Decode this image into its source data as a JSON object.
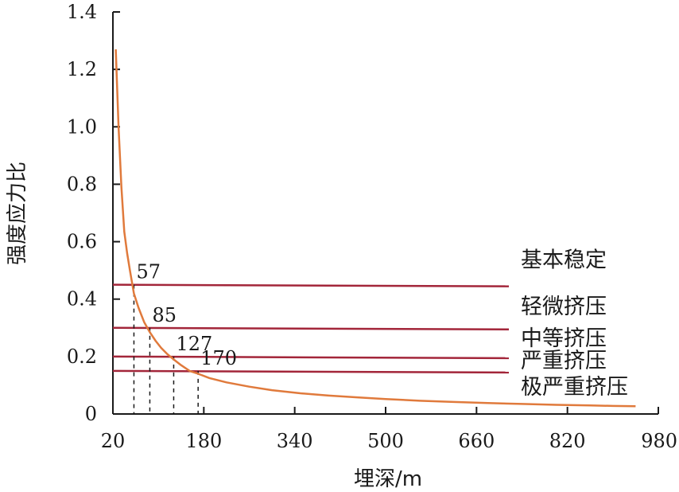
{
  "chart_data": {
    "type": "line",
    "xlabel": "埋深/m",
    "ylabel": "强度应力比",
    "xlim": [
      20,
      980
    ],
    "ylim": [
      0,
      1.4
    ],
    "x_ticks": [
      20,
      180,
      340,
      500,
      660,
      820,
      980
    ],
    "y_ticks": [
      0,
      0.2,
      0.4,
      0.6,
      0.8,
      1.0,
      1.2,
      1.4
    ],
    "x_tick_labels": [
      "20",
      "180",
      "340",
      "500",
      "660",
      "820",
      "980"
    ],
    "y_tick_labels": [
      "0",
      "0.2",
      "0.4",
      "0.6",
      "0.8",
      "1.0",
      "1.2",
      "1.4"
    ],
    "grid": false,
    "series": [
      {
        "color": "#E07A3C",
        "x": [
          25,
          30,
          35,
          40,
          45,
          50,
          57,
          65,
          75,
          85,
          95,
          105,
          115,
          127,
          140,
          155,
          170,
          190,
          220,
          260,
          300,
          350,
          400,
          450,
          500,
          560,
          620,
          680,
          740,
          800,
          860,
          900,
          940
        ],
        "y": [
          1.27,
          1.0,
          0.79,
          0.635,
          0.56,
          0.5,
          0.42,
          0.37,
          0.32,
          0.285,
          0.255,
          0.23,
          0.21,
          0.19,
          0.17,
          0.15,
          0.14,
          0.125,
          0.11,
          0.095,
          0.083,
          0.072,
          0.064,
          0.058,
          0.052,
          0.046,
          0.042,
          0.038,
          0.035,
          0.032,
          0.03,
          0.028,
          0.027
        ]
      }
    ],
    "thresholds": [
      {
        "label": "基本稳定",
        "y": 0.45,
        "color": "#A3263A"
      },
      {
        "label": "轻微挤压",
        "y": 0.3,
        "color": "#A3263A"
      },
      {
        "label": "中等挤压",
        "y": 0.2,
        "color": "#A3263A"
      },
      {
        "label": "严重挤压",
        "y": 0.15,
        "color": "#A3263A"
      },
      {
        "label": "极严重挤压",
        "y": null,
        "color": "#A3263A"
      }
    ],
    "annotations": [
      {
        "label": "57",
        "x": 57,
        "y": 0.45
      },
      {
        "label": "85",
        "x": 85,
        "y": 0.3
      },
      {
        "label": "127",
        "x": 127,
        "y": 0.2
      },
      {
        "label": "170",
        "x": 170,
        "y": 0.15
      }
    ]
  }
}
